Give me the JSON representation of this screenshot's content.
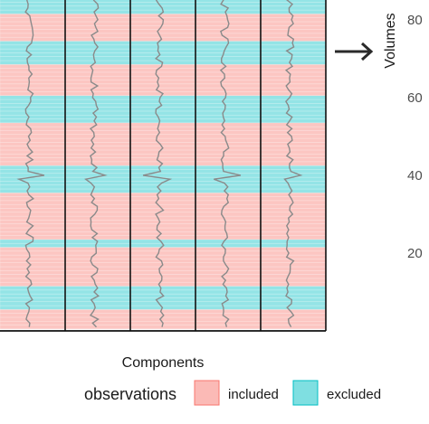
{
  "chart_data": {
    "type": "heatmap",
    "title": "",
    "xlabel": "Components",
    "ylabel": "Volumes",
    "ylim": [
      0,
      86
    ],
    "yticks": [
      20,
      40,
      60,
      80
    ],
    "columns": 5,
    "grid": false,
    "legend": {
      "title": "observations",
      "placement": "bottom",
      "entries": [
        {
          "key": "included",
          "label": "included",
          "color": "#f8766d"
        },
        {
          "key": "excluded",
          "label": "excluded",
          "color": "#00bfc4"
        }
      ]
    },
    "row_status": [
      "included",
      "included",
      "included",
      "included",
      "included",
      "excluded",
      "excluded",
      "excluded",
      "excluded",
      "excluded",
      "excluded",
      "included",
      "included",
      "included",
      "included",
      "included",
      "included",
      "included",
      "included",
      "included",
      "included",
      "excluded",
      "excluded",
      "included",
      "included",
      "included",
      "included",
      "included",
      "included",
      "included",
      "included",
      "included",
      "included",
      "included",
      "included",
      "excluded",
      "excluded",
      "excluded",
      "excluded",
      "excluded",
      "excluded",
      "excluded",
      "included",
      "included",
      "included",
      "included",
      "included",
      "included",
      "included",
      "included",
      "included",
      "included",
      "included",
      "excluded",
      "excluded",
      "excluded",
      "excluded",
      "excluded",
      "excluded",
      "excluded",
      "included",
      "included",
      "included",
      "included",
      "included",
      "included",
      "included",
      "included",
      "excluded",
      "excluded",
      "excluded",
      "excluded",
      "excluded",
      "excluded",
      "included",
      "included",
      "included",
      "included",
      "included",
      "included",
      "included",
      "excluded",
      "excluded",
      "excluded",
      "excluded",
      "excluded",
      "excluded"
    ],
    "spike_volumes": [
      39,
      40
    ]
  },
  "annotation": {
    "arrow": "right-arrow"
  }
}
